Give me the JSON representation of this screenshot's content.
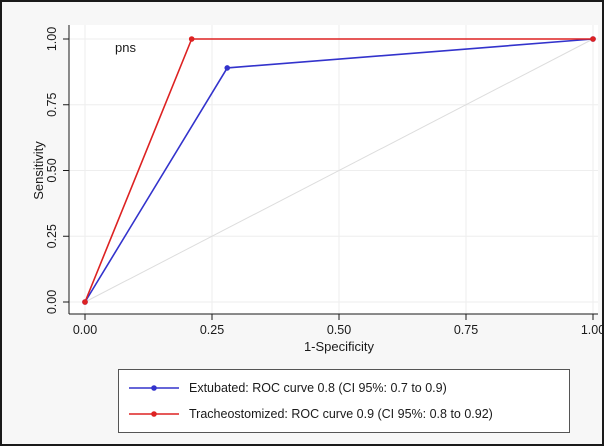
{
  "chart_data": {
    "type": "line",
    "annotation": "pns",
    "xlabel": "1-Specificity",
    "ylabel": "Sensitivity",
    "xlim": [
      0,
      1
    ],
    "ylim": [
      0,
      1
    ],
    "xticks": [
      0,
      0.25,
      0.5,
      0.75,
      1
    ],
    "xtick_labels": [
      "0.00",
      "0.25",
      "0.50",
      "0.75",
      "1.00"
    ],
    "yticks": [
      0,
      0.25,
      0.5,
      0.75,
      1
    ],
    "ytick_labels": [
      "0.00",
      "0.25",
      "0.50",
      "0.75",
      "1.00"
    ],
    "grid": true,
    "reference_line": [
      [
        0,
        0
      ],
      [
        1,
        1
      ]
    ],
    "legend_position": "bottom",
    "series": [
      {
        "name": "Extubated: ROC curve 0.8 (CI 95%: 0.7 to 0.9)",
        "color": "#3333cc",
        "x": [
          0,
          0.28,
          1
        ],
        "y": [
          0,
          0.89,
          1
        ]
      },
      {
        "name": "Tracheostomized: ROC curve 0.9 (CI 95%: 0.8 to 0.92)",
        "color": "#dd2222",
        "x": [
          0,
          0.21,
          1
        ],
        "y": [
          0,
          1,
          1
        ]
      }
    ]
  }
}
